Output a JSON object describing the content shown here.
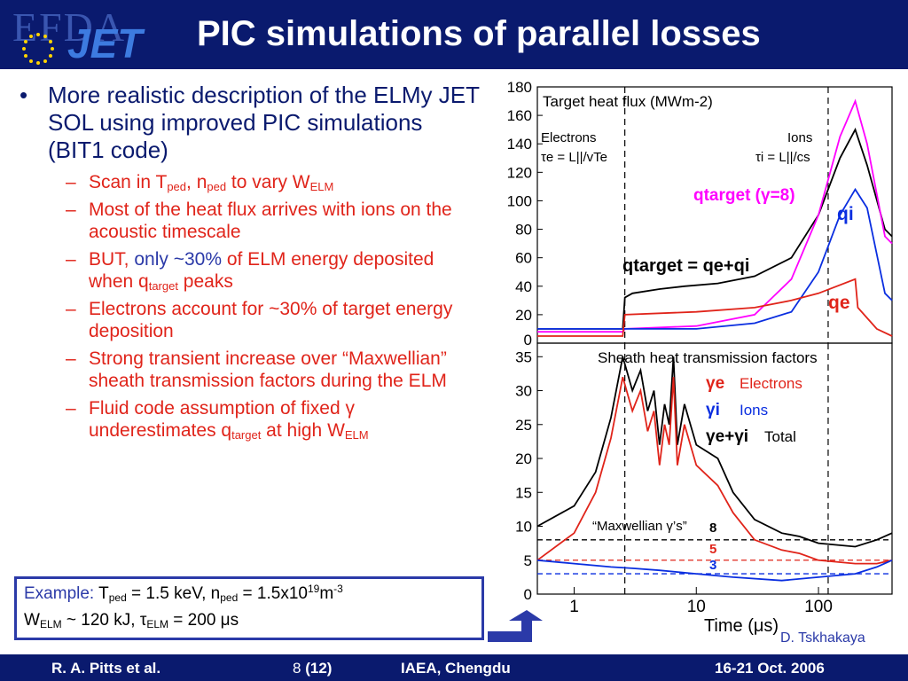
{
  "header": {
    "logo_efda": "EFDA",
    "logo_jet": "JET",
    "title": "PIC simulations of parallel losses"
  },
  "bullets": {
    "main": "More realistic description of the ELMy JET SOL using improved PIC simulations (BIT1 code)",
    "subs": [
      {
        "a": "Scan in T",
        "b": "ped",
        "c": ", n",
        "d": "ped",
        "e": " to vary W",
        "f": "ELM"
      },
      {
        "text": "Most of the heat flux arrives with ions on the acoustic timescale"
      },
      {
        "a": "BUT, ",
        "b": "only ~30%",
        "c": " of ELM energy deposited when q",
        "d": "target",
        "e": " peaks"
      },
      {
        "text": "Electrons account for ~30% of target energy deposition"
      },
      {
        "text": "Strong transient increase over “Maxwellian” sheath transmission factors during the ELM"
      },
      {
        "a": "Fluid code assumption of fixed ",
        "g": "γ",
        "b": " underestimates q",
        "c": "target",
        "d": " at high W",
        "e": "ELM"
      }
    ]
  },
  "example": {
    "label": "Example:",
    "l1a": " T",
    "l1b": "ped",
    "l1c": " = 1.5 keV, n",
    "l1d": "ped",
    "l1e": " = 1.5x10",
    "l1f": "19",
    "l1g": "m",
    "l1h": "-3",
    "l2a": "W",
    "l2b": "ELM",
    "l2c": " ~ 120 kJ, ",
    "l2d": "τ",
    "l2e": "ELM",
    "l2f": " = 200 ",
    "l2g": "μ",
    "l2h": "s"
  },
  "chart_data": {
    "type": "line",
    "xlabel": "Time (μs)",
    "x_scale": "log",
    "xlim": [
      0.5,
      400
    ],
    "x_ticks": [
      "1",
      "10",
      "100"
    ],
    "panels": [
      {
        "title": "Target heat flux (MWm-2)",
        "ylim": [
          0,
          180
        ],
        "y_ticks": [
          "0",
          "20",
          "40",
          "60",
          "80",
          "100",
          "120",
          "140",
          "160",
          "180"
        ],
        "annotations": {
          "electrons": "Electrons",
          "tau_e": "τe = L||/vTe",
          "ions": "Ions",
          "tau_i": "τi = L||/cs",
          "q_target_gamma": "qtarget (γ=8)",
          "q_i": "qi",
          "q_sum": "qtarget = qe+qi",
          "q_e": "qe"
        },
        "series": [
          {
            "name": "qtarget",
            "color": "#000000",
            "x": [
              0.5,
              2.5,
              2.6,
              3,
              5,
              8,
              15,
              30,
              60,
              100,
              150,
              200,
              250,
              350,
              400
            ],
            "y": [
              10,
              10,
              32,
              35,
              38,
              40,
              42,
              47,
              60,
              90,
              130,
              150,
              125,
              80,
              75
            ]
          },
          {
            "name": "qtarget (γ=8)",
            "color": "#ff00ff",
            "x": [
              0.5,
              2.5,
              2.6,
              10,
              30,
              60,
              100,
              150,
              200,
              250,
              350,
              400
            ],
            "y": [
              8,
              8,
              10,
              12,
              20,
              45,
              90,
              145,
              170,
              140,
              75,
              70
            ]
          },
          {
            "name": "qi",
            "color": "#0a2ee0",
            "x": [
              0.5,
              10,
              30,
              60,
              100,
              150,
              200,
              250,
              350,
              400
            ],
            "y": [
              10,
              10,
              14,
              22,
              50,
              90,
              108,
              95,
              35,
              30
            ]
          },
          {
            "name": "qe",
            "color": "#e0241a",
            "x": [
              0.5,
              2.5,
              2.6,
              10,
              30,
              60,
              100,
              200,
              210,
              300,
              400
            ],
            "y": [
              5,
              5,
              20,
              22,
              25,
              30,
              35,
              45,
              25,
              10,
              5
            ]
          }
        ]
      },
      {
        "title": "Sheath heat transmission factors",
        "ylim": [
          0,
          37
        ],
        "y_ticks": [
          "0",
          "5",
          "10",
          "15",
          "20",
          "25",
          "30",
          "35"
        ],
        "legend": [
          {
            "symbol": "γe",
            "label": "Electrons",
            "color": "#e0241a"
          },
          {
            "symbol": "γi",
            "label": "Ions",
            "color": "#0a2ee0"
          },
          {
            "symbol": "γe+γi",
            "label": "Total",
            "color": "#000000"
          }
        ],
        "annotations": {
          "maxwellian": "“Maxwellian γ’s”",
          "ref_8": "8",
          "ref_5": "5",
          "ref_3": "3"
        },
        "reference_lines": [
          {
            "value": 8,
            "color": "#000000"
          },
          {
            "value": 5,
            "color": "#e0241a"
          },
          {
            "value": 3,
            "color": "#0a2ee0"
          }
        ],
        "series": [
          {
            "name": "γe+γi",
            "color": "#000000",
            "x": [
              0.5,
              1,
              1.5,
              2,
              2.5,
              3,
              3.5,
              4,
              4.5,
              5,
              5.5,
              6,
              6.5,
              7,
              8,
              10,
              15,
              20,
              30,
              50,
              70,
              100,
              200,
              300,
              400
            ],
            "y": [
              10,
              13,
              18,
              26,
              35,
              30,
              33,
              27,
              30,
              22,
              28,
              25,
              35,
              22,
              28,
              22,
              20,
              15,
              11,
              9,
              8.5,
              7.5,
              7,
              8,
              9
            ]
          },
          {
            "name": "γe",
            "color": "#e0241a",
            "x": [
              0.5,
              1,
              1.5,
              2,
              2.5,
              3,
              3.5,
              4,
              4.5,
              5,
              5.5,
              6,
              6.5,
              7,
              8,
              10,
              15,
              20,
              30,
              50,
              70,
              100,
              200,
              300,
              400
            ],
            "y": [
              5,
              9,
              15,
              23,
              32,
              27,
              30,
              24,
              27,
              19,
              25,
              22,
              32,
              19,
              25,
              19,
              16,
              12,
              8,
              6.5,
              6,
              5,
              4.5,
              4.5,
              5
            ]
          },
          {
            "name": "γi",
            "color": "#0a2ee0",
            "x": [
              0.5,
              1,
              2,
              3,
              5,
              10,
              20,
              50,
              100,
              200,
              300,
              400
            ],
            "y": [
              5,
              4.5,
              4,
              3.8,
              3.5,
              3,
              2.5,
              2,
              2.5,
              3,
              4,
              5
            ]
          }
        ]
      }
    ]
  },
  "author": "D. Tskhakaya",
  "footer": {
    "left": "R. A. Pitts et al.",
    "page_num": "8",
    "page_total": "(12)",
    "center": "IAEA, Chengdu",
    "right": "16-21 Oct. 2006"
  }
}
